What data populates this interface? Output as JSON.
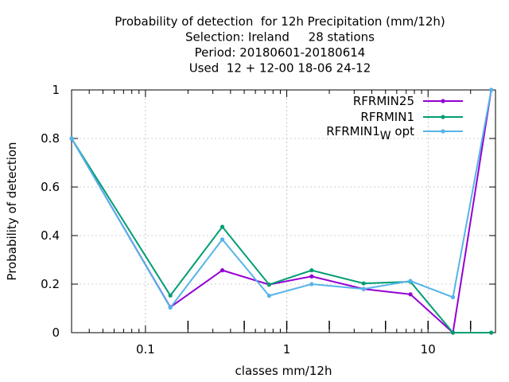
{
  "chart_data": {
    "type": "line",
    "title_lines": [
      "Probability of detection  for 12h Precipitation (mm/12h)",
      "Selection: Ireland     28 stations",
      "Period: 20180601-20180614",
      "Used  12 + 12-00 18-06 24-12"
    ],
    "xlabel": "classes mm/12h",
    "ylabel": "Probability of detection",
    "xscale": "log",
    "x_tick_labels": [
      "0.1",
      "1",
      "10"
    ],
    "y_tick_labels": [
      "0",
      "0.2",
      "0.4",
      "0.6",
      "0.8",
      "1"
    ],
    "ylim": [
      0,
      1
    ],
    "grid": true,
    "legend_position": "top-right",
    "x": [
      0.03,
      0.15,
      0.35,
      0.75,
      1.5,
      3.5,
      7.5,
      15,
      28
    ],
    "series": [
      {
        "name": "RFRMIN25",
        "legend_main": "RFRMIN25",
        "legend_sub": "",
        "legend_tail": "",
        "color": "#9400d3",
        "values": [
          0.8,
          0.105,
          0.257,
          0.198,
          0.232,
          0.18,
          0.158,
          0.0,
          1.0
        ]
      },
      {
        "name": "RFRMIN1",
        "legend_main": "RFRMIN1",
        "legend_sub": "",
        "legend_tail": "",
        "color": "#009e73",
        "values": [
          0.8,
          0.153,
          0.436,
          0.198,
          0.257,
          0.203,
          0.21,
          0.0,
          0.0
        ]
      },
      {
        "name": "RFRMIN1_W opt",
        "legend_main": "RFRMIN1",
        "legend_sub": "W",
        "legend_tail": "opt",
        "color": "#56b4e9",
        "values": [
          0.8,
          0.103,
          0.384,
          0.152,
          0.2,
          0.18,
          0.213,
          0.146,
          1.0
        ]
      }
    ]
  }
}
